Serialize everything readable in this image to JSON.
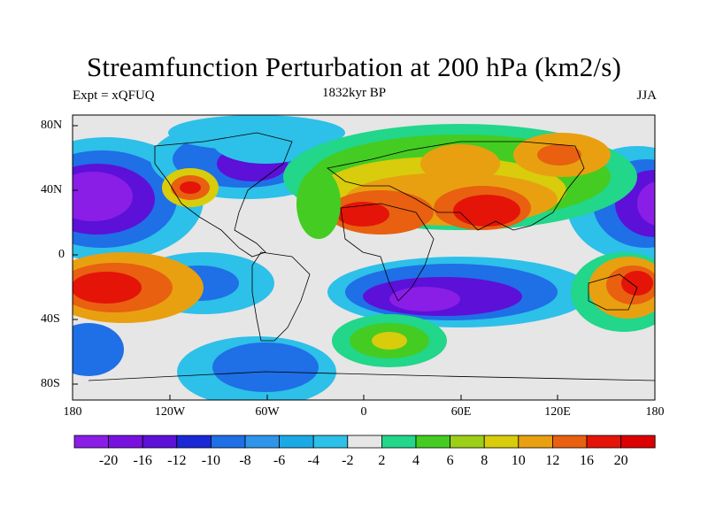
{
  "title": "Streamfunction Perturbation at 200 hPa (km2/s)",
  "subtitle_left": "Expt = xQFUQ",
  "subtitle_center": "1832kyr BP",
  "subtitle_right": "JJA",
  "y_ticks": [
    "80N",
    "40N",
    "0",
    "40S",
    "80S"
  ],
  "x_ticks": [
    "180",
    "120W",
    "60W",
    "0",
    "60E",
    "120E",
    "180"
  ],
  "colorbar_labels": [
    "-20",
    "-16",
    "-12",
    "-10",
    "-8",
    "-6",
    "-4",
    "-2",
    "2",
    "4",
    "6",
    "8",
    "10",
    "12",
    "16",
    "20"
  ],
  "colorbar_colors": [
    "#8a1ee6",
    "#7810e0",
    "#5c10d8",
    "#1a28d6",
    "#1f6fe6",
    "#2e95ea",
    "#1aa9e6",
    "#2dc0e8",
    "#e6e6e6",
    "#22d68a",
    "#44cc22",
    "#9ccf18",
    "#d8cc0c",
    "#e8a010",
    "#e86010",
    "#e41408",
    "#dc0000"
  ],
  "colors": {
    "ocean": "#e6e6e6"
  },
  "chart_data": {
    "type": "heatmap",
    "title": "Streamfunction Perturbation at 200 hPa (km2/s)",
    "experiment": "xQFUQ",
    "period": "1832kyr BP",
    "season": "JJA",
    "levels": [
      -20,
      -16,
      -12,
      -10,
      -8,
      -6,
      -4,
      -2,
      2,
      4,
      6,
      8,
      10,
      12,
      16,
      20
    ],
    "lon_range": [
      -180,
      180
    ],
    "lat_range": [
      -90,
      90
    ],
    "features": [
      {
        "lon": -160,
        "lat": 40,
        "value": -20
      },
      {
        "lon": -165,
        "lat": -20,
        "value": 16
      },
      {
        "lon": -110,
        "lat": 40,
        "value": 14
      },
      {
        "lon": -75,
        "lat": 55,
        "value": -12
      },
      {
        "lon": -10,
        "lat": 25,
        "value": 16
      },
      {
        "lon": 85,
        "lat": 28,
        "value": 20
      },
      {
        "lon": 120,
        "lat": 62,
        "value": 12
      },
      {
        "lon": 50,
        "lat": -25,
        "value": -16
      },
      {
        "lon": 20,
        "lat": -55,
        "value": 10
      },
      {
        "lon": -70,
        "lat": -60,
        "value": -10
      },
      {
        "lon": 170,
        "lat": 40,
        "value": -20
      },
      {
        "lon": 160,
        "lat": -25,
        "value": 16
      }
    ]
  }
}
